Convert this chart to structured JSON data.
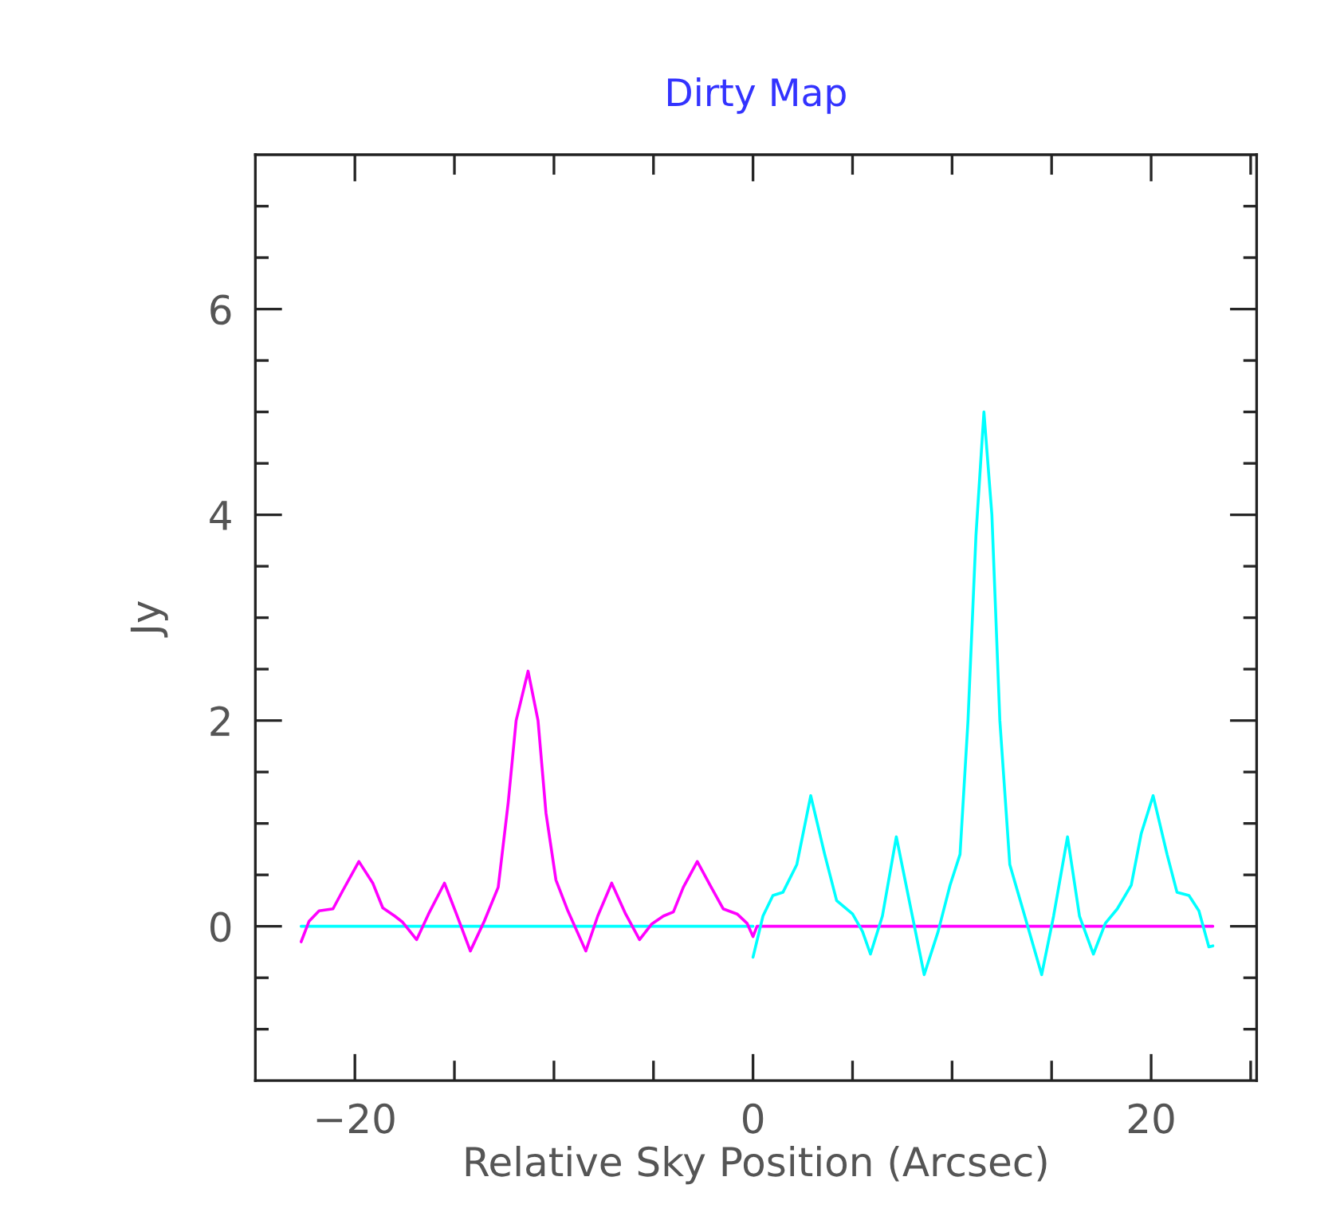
{
  "chart_data": {
    "type": "line",
    "title": "Dirty Map",
    "xlabel": "Relative Sky Position (Arcsec)",
    "ylabel": "Jy",
    "xlim": [
      -25,
      25.3
    ],
    "ylim": [
      -1.5,
      7.5
    ],
    "xticks": [
      {
        "value": -20,
        "label": "−20"
      },
      {
        "value": -15,
        "label": null
      },
      {
        "value": -10,
        "label": null
      },
      {
        "value": -5,
        "label": null
      },
      0,
      {
        "value": 5,
        "label": null
      },
      {
        "value": 10,
        "label": null
      },
      {
        "value": 15,
        "label": null
      },
      20,
      {
        "value": 25,
        "label": null
      }
    ],
    "yticks": [
      {
        "value": -1,
        "label": null
      },
      {
        "value": -0.5,
        "label": null
      },
      0,
      {
        "value": 0.5,
        "label": null
      },
      {
        "value": 1,
        "label": null
      },
      {
        "value": 1.5,
        "label": null
      },
      2,
      {
        "value": 2.5,
        "label": null
      },
      {
        "value": 3,
        "label": null
      },
      {
        "value": 3.5,
        "label": null
      },
      4,
      {
        "value": 4.5,
        "label": null
      },
      {
        "value": 5,
        "label": null
      },
      {
        "value": 5.5,
        "label": null
      },
      6,
      {
        "value": 6.5,
        "label": null
      },
      {
        "value": 7,
        "label": null
      }
    ],
    "grid": false,
    "legend": false,
    "series": [
      {
        "color": "#00ffff",
        "x": [
          -22.7,
          0
        ],
        "values": [
          0,
          0
        ]
      },
      {
        "color": "#ff00ff",
        "x": [
          -22.7,
          -22.3,
          -21.8,
          -21.1,
          -20.6,
          -19.8,
          -19.1,
          -18.6,
          -18.0,
          -17.6,
          -16.9,
          -16.3,
          -15.5,
          -14.9,
          -14.2,
          -13.5,
          -12.8,
          -12.3,
          -11.9,
          -11.3,
          -10.8,
          -10.4,
          -9.9,
          -9.3,
          -8.4,
          -7.8,
          -7.1,
          -6.4,
          -5.7,
          -5.1,
          -4.5,
          -4.0,
          -3.5,
          -2.8,
          -2.1,
          -1.5,
          -0.8,
          -0.3,
          0,
          0.2,
          23.1
        ],
        "values": [
          -0.15,
          0.05,
          0.15,
          0.17,
          0.35,
          0.63,
          0.42,
          0.18,
          0.1,
          0.04,
          -0.13,
          0.12,
          0.42,
          0.12,
          -0.24,
          0.05,
          0.38,
          1.2,
          2.0,
          2.48,
          2.0,
          1.1,
          0.45,
          0.15,
          -0.24,
          0.1,
          0.42,
          0.12,
          -0.13,
          0.02,
          0.1,
          0.14,
          0.38,
          0.63,
          0.38,
          0.17,
          0.12,
          0.03,
          -0.1,
          0,
          0
        ]
      },
      {
        "color": "#00ffff",
        "x": [
          0,
          0.5,
          1.0,
          1.5,
          2.2,
          2.9,
          3.6,
          4.2,
          5.0,
          5.5,
          5.9,
          6.5,
          7.2,
          7.9,
          8.6,
          9.3,
          9.9,
          10.4,
          10.8,
          11.2,
          11.6,
          12.0,
          12.4,
          12.9,
          13.5,
          14.5,
          15.1,
          15.8,
          16.4,
          17.1,
          17.7,
          18.3,
          19.0,
          19.5,
          20.1,
          20.8,
          21.3,
          21.9,
          22.4,
          22.9,
          23.1
        ],
        "values": [
          -0.3,
          0.1,
          0.3,
          0.33,
          0.6,
          1.27,
          0.7,
          0.25,
          0.12,
          -0.05,
          -0.27,
          0.1,
          0.87,
          0.2,
          -0.47,
          -0.05,
          0.4,
          0.7,
          2.0,
          3.8,
          5.0,
          4.0,
          2.0,
          0.6,
          0.2,
          -0.47,
          0.1,
          0.87,
          0.1,
          -0.27,
          0.03,
          0.17,
          0.4,
          0.9,
          1.27,
          0.7,
          0.33,
          0.3,
          0.15,
          -0.2,
          -0.19
        ]
      }
    ]
  }
}
